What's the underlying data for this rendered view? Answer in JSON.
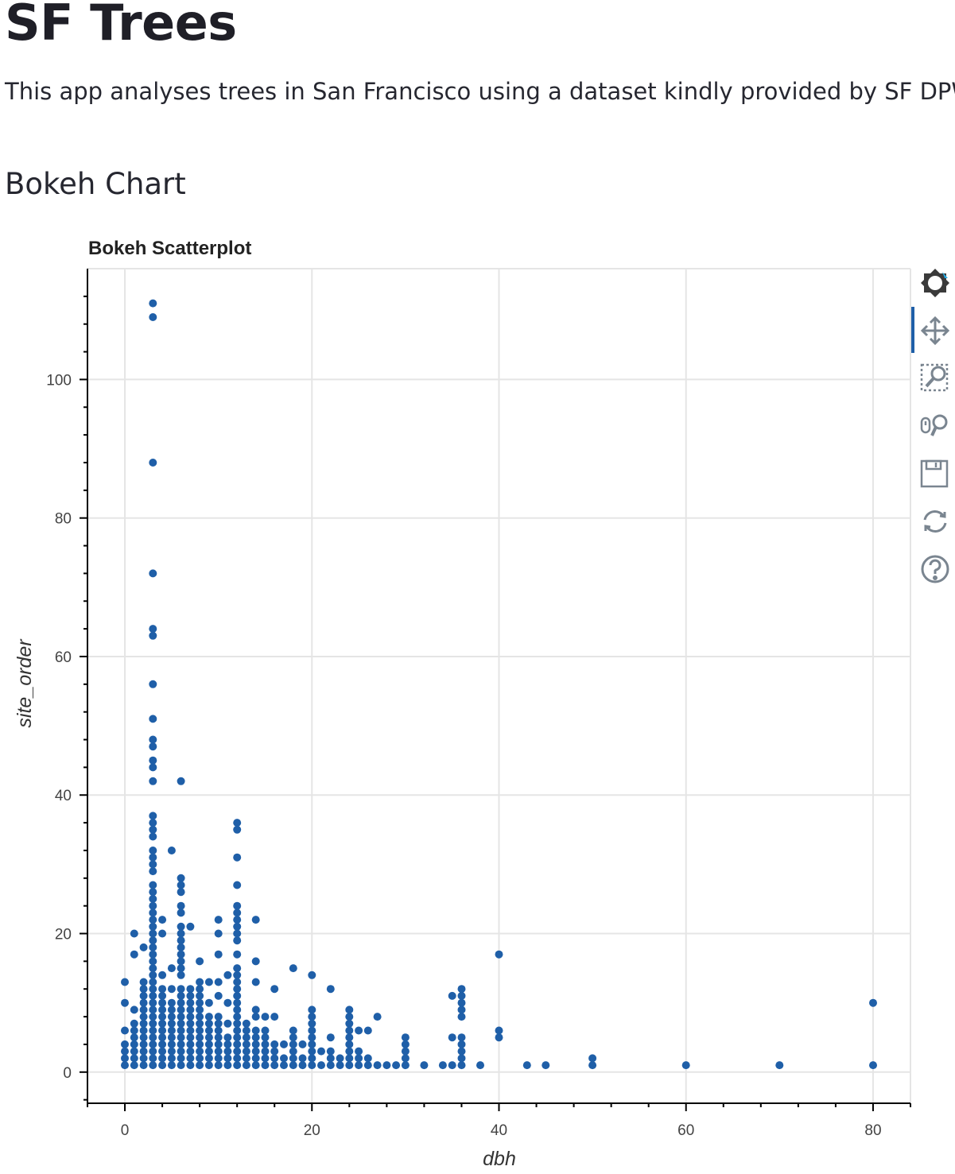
{
  "page": {
    "title": "SF Trees",
    "intro": "This app analyses trees in San Francisco using a dataset kindly provided by SF DPW",
    "section_title": "Bokeh Chart"
  },
  "toolbar": {
    "tools": [
      {
        "icon": "bokeh-logo-icon",
        "active": false
      },
      {
        "icon": "pan-icon",
        "active": true
      },
      {
        "icon": "box-zoom-icon",
        "active": false
      },
      {
        "icon": "wheel-zoom-icon",
        "active": false
      },
      {
        "icon": "save-icon",
        "active": false
      },
      {
        "icon": "reset-icon",
        "active": false
      },
      {
        "icon": "help-icon",
        "active": false
      }
    ]
  },
  "chart_data": {
    "type": "scatter",
    "title": "Bokeh Scatterplot",
    "xlabel": "dbh",
    "ylabel": "site_order",
    "xlim": [
      -4,
      84
    ],
    "ylim": [
      -4.5,
      116
    ],
    "xticks": [
      0,
      20,
      40,
      60,
      80
    ],
    "yticks": [
      0,
      20,
      40,
      60,
      80,
      100
    ],
    "grid": true,
    "marker_color": "#1f5fa8",
    "series": [
      {
        "points": [
          [
            0,
            1
          ],
          [
            0,
            2
          ],
          [
            0,
            3
          ],
          [
            0,
            4
          ],
          [
            0,
            6
          ],
          [
            0,
            10
          ],
          [
            0,
            13
          ],
          [
            1,
            1
          ],
          [
            1,
            2
          ],
          [
            1,
            3
          ],
          [
            1,
            4
          ],
          [
            1,
            5
          ],
          [
            1,
            6
          ],
          [
            1,
            7
          ],
          [
            1,
            9
          ],
          [
            1,
            17
          ],
          [
            1,
            20
          ],
          [
            2,
            1
          ],
          [
            2,
            2
          ],
          [
            2,
            3
          ],
          [
            2,
            4
          ],
          [
            2,
            5
          ],
          [
            2,
            6
          ],
          [
            2,
            7
          ],
          [
            2,
            8
          ],
          [
            2,
            9
          ],
          [
            2,
            10
          ],
          [
            2,
            11
          ],
          [
            2,
            12
          ],
          [
            2,
            13
          ],
          [
            2,
            18
          ],
          [
            3,
            1
          ],
          [
            3,
            2
          ],
          [
            3,
            3
          ],
          [
            3,
            4
          ],
          [
            3,
            5
          ],
          [
            3,
            6
          ],
          [
            3,
            7
          ],
          [
            3,
            8
          ],
          [
            3,
            9
          ],
          [
            3,
            10
          ],
          [
            3,
            11
          ],
          [
            3,
            12
          ],
          [
            3,
            13
          ],
          [
            3,
            14
          ],
          [
            3,
            15
          ],
          [
            3,
            16
          ],
          [
            3,
            17
          ],
          [
            3,
            18
          ],
          [
            3,
            19
          ],
          [
            3,
            20
          ],
          [
            3,
            21
          ],
          [
            3,
            22
          ],
          [
            3,
            23
          ],
          [
            3,
            24
          ],
          [
            3,
            25
          ],
          [
            3,
            26
          ],
          [
            3,
            27
          ],
          [
            3,
            29
          ],
          [
            3,
            30
          ],
          [
            3,
            31
          ],
          [
            3,
            32
          ],
          [
            3,
            34
          ],
          [
            3,
            35
          ],
          [
            3,
            36
          ],
          [
            3,
            37
          ],
          [
            3,
            42
          ],
          [
            3,
            44
          ],
          [
            3,
            45
          ],
          [
            3,
            47
          ],
          [
            3,
            48
          ],
          [
            3,
            51
          ],
          [
            3,
            56
          ],
          [
            3,
            63
          ],
          [
            3,
            64
          ],
          [
            3,
            72
          ],
          [
            3,
            88
          ],
          [
            3,
            109
          ],
          [
            3,
            111
          ],
          [
            4,
            1
          ],
          [
            4,
            2
          ],
          [
            4,
            3
          ],
          [
            4,
            4
          ],
          [
            4,
            5
          ],
          [
            4,
            6
          ],
          [
            4,
            7
          ],
          [
            4,
            8
          ],
          [
            4,
            9
          ],
          [
            4,
            10
          ],
          [
            4,
            11
          ],
          [
            4,
            12
          ],
          [
            4,
            14
          ],
          [
            4,
            20
          ],
          [
            4,
            22
          ],
          [
            5,
            1
          ],
          [
            5,
            2
          ],
          [
            5,
            3
          ],
          [
            5,
            4
          ],
          [
            5,
            5
          ],
          [
            5,
            6
          ],
          [
            5,
            7
          ],
          [
            5,
            8
          ],
          [
            5,
            9
          ],
          [
            5,
            10
          ],
          [
            5,
            12
          ],
          [
            5,
            15
          ],
          [
            5,
            32
          ],
          [
            6,
            1
          ],
          [
            6,
            2
          ],
          [
            6,
            3
          ],
          [
            6,
            4
          ],
          [
            6,
            5
          ],
          [
            6,
            6
          ],
          [
            6,
            7
          ],
          [
            6,
            8
          ],
          [
            6,
            9
          ],
          [
            6,
            10
          ],
          [
            6,
            11
          ],
          [
            6,
            12
          ],
          [
            6,
            14
          ],
          [
            6,
            15
          ],
          [
            6,
            16
          ],
          [
            6,
            17
          ],
          [
            6,
            18
          ],
          [
            6,
            19
          ],
          [
            6,
            20
          ],
          [
            6,
            21
          ],
          [
            6,
            23
          ],
          [
            6,
            24
          ],
          [
            6,
            26
          ],
          [
            6,
            27
          ],
          [
            6,
            28
          ],
          [
            6,
            42
          ],
          [
            7,
            1
          ],
          [
            7,
            2
          ],
          [
            7,
            3
          ],
          [
            7,
            4
          ],
          [
            7,
            5
          ],
          [
            7,
            6
          ],
          [
            7,
            7
          ],
          [
            7,
            8
          ],
          [
            7,
            9
          ],
          [
            7,
            10
          ],
          [
            7,
            11
          ],
          [
            7,
            12
          ],
          [
            7,
            21
          ],
          [
            8,
            1
          ],
          [
            8,
            2
          ],
          [
            8,
            3
          ],
          [
            8,
            4
          ],
          [
            8,
            5
          ],
          [
            8,
            6
          ],
          [
            8,
            7
          ],
          [
            8,
            8
          ],
          [
            8,
            9
          ],
          [
            8,
            10
          ],
          [
            8,
            11
          ],
          [
            8,
            12
          ],
          [
            8,
            13
          ],
          [
            8,
            16
          ],
          [
            9,
            1
          ],
          [
            9,
            2
          ],
          [
            9,
            3
          ],
          [
            9,
            4
          ],
          [
            9,
            5
          ],
          [
            9,
            6
          ],
          [
            9,
            7
          ],
          [
            9,
            8
          ],
          [
            9,
            10
          ],
          [
            9,
            13
          ],
          [
            10,
            1
          ],
          [
            10,
            2
          ],
          [
            10,
            3
          ],
          [
            10,
            4
          ],
          [
            10,
            5
          ],
          [
            10,
            6
          ],
          [
            10,
            7
          ],
          [
            10,
            8
          ],
          [
            10,
            11
          ],
          [
            10,
            13
          ],
          [
            10,
            17
          ],
          [
            10,
            20
          ],
          [
            10,
            22
          ],
          [
            11,
            1
          ],
          [
            11,
            2
          ],
          [
            11,
            3
          ],
          [
            11,
            4
          ],
          [
            11,
            5
          ],
          [
            11,
            7
          ],
          [
            11,
            10
          ],
          [
            11,
            14
          ],
          [
            12,
            1
          ],
          [
            12,
            2
          ],
          [
            12,
            3
          ],
          [
            12,
            4
          ],
          [
            12,
            5
          ],
          [
            12,
            6
          ],
          [
            12,
            7
          ],
          [
            12,
            8
          ],
          [
            12,
            9
          ],
          [
            12,
            10
          ],
          [
            12,
            11
          ],
          [
            12,
            12
          ],
          [
            12,
            13
          ],
          [
            12,
            14
          ],
          [
            12,
            15
          ],
          [
            12,
            17
          ],
          [
            12,
            19
          ],
          [
            12,
            20
          ],
          [
            12,
            21
          ],
          [
            12,
            22
          ],
          [
            12,
            23
          ],
          [
            12,
            24
          ],
          [
            12,
            27
          ],
          [
            12,
            31
          ],
          [
            12,
            35
          ],
          [
            12,
            36
          ],
          [
            13,
            1
          ],
          [
            13,
            2
          ],
          [
            13,
            3
          ],
          [
            13,
            4
          ],
          [
            13,
            5
          ],
          [
            13,
            6
          ],
          [
            13,
            7
          ],
          [
            14,
            1
          ],
          [
            14,
            2
          ],
          [
            14,
            3
          ],
          [
            14,
            4
          ],
          [
            14,
            5
          ],
          [
            14,
            6
          ],
          [
            14,
            8
          ],
          [
            14,
            9
          ],
          [
            14,
            13
          ],
          [
            14,
            16
          ],
          [
            14,
            22
          ],
          [
            15,
            1
          ],
          [
            15,
            2
          ],
          [
            15,
            3
          ],
          [
            15,
            4
          ],
          [
            15,
            5
          ],
          [
            15,
            6
          ],
          [
            15,
            8
          ],
          [
            16,
            1
          ],
          [
            16,
            2
          ],
          [
            16,
            3
          ],
          [
            16,
            4
          ],
          [
            16,
            8
          ],
          [
            16,
            12
          ],
          [
            17,
            1
          ],
          [
            17,
            2
          ],
          [
            17,
            4
          ],
          [
            18,
            1
          ],
          [
            18,
            2
          ],
          [
            18,
            3
          ],
          [
            18,
            4
          ],
          [
            18,
            5
          ],
          [
            18,
            6
          ],
          [
            18,
            15
          ],
          [
            19,
            1
          ],
          [
            19,
            2
          ],
          [
            19,
            4
          ],
          [
            20,
            1
          ],
          [
            20,
            2
          ],
          [
            20,
            3
          ],
          [
            20,
            4
          ],
          [
            20,
            5
          ],
          [
            20,
            6
          ],
          [
            20,
            7
          ],
          [
            20,
            8
          ],
          [
            20,
            9
          ],
          [
            20,
            14
          ],
          [
            21,
            1
          ],
          [
            21,
            3
          ],
          [
            22,
            1
          ],
          [
            22,
            2
          ],
          [
            22,
            3
          ],
          [
            22,
            5
          ],
          [
            22,
            12
          ],
          [
            23,
            1
          ],
          [
            23,
            2
          ],
          [
            24,
            1
          ],
          [
            24,
            2
          ],
          [
            24,
            3
          ],
          [
            24,
            4
          ],
          [
            24,
            5
          ],
          [
            24,
            6
          ],
          [
            24,
            7
          ],
          [
            24,
            8
          ],
          [
            24,
            9
          ],
          [
            25,
            1
          ],
          [
            25,
            2
          ],
          [
            25,
            3
          ],
          [
            25,
            6
          ],
          [
            26,
            1
          ],
          [
            26,
            2
          ],
          [
            26,
            6
          ],
          [
            27,
            1
          ],
          [
            27,
            8
          ],
          [
            28,
            1
          ],
          [
            29,
            1
          ],
          [
            30,
            1
          ],
          [
            30,
            2
          ],
          [
            30,
            3
          ],
          [
            30,
            4
          ],
          [
            30,
            5
          ],
          [
            32,
            1
          ],
          [
            34,
            1
          ],
          [
            35,
            1
          ],
          [
            35,
            5
          ],
          [
            35,
            11
          ],
          [
            36,
            1
          ],
          [
            36,
            2
          ],
          [
            36,
            3
          ],
          [
            36,
            4
          ],
          [
            36,
            5
          ],
          [
            36,
            8
          ],
          [
            36,
            9
          ],
          [
            36,
            10
          ],
          [
            36,
            11
          ],
          [
            36,
            12
          ],
          [
            38,
            1
          ],
          [
            40,
            5
          ],
          [
            40,
            6
          ],
          [
            40,
            17
          ],
          [
            43,
            1
          ],
          [
            45,
            1
          ],
          [
            50,
            1
          ],
          [
            50,
            2
          ],
          [
            60,
            1
          ],
          [
            70,
            1
          ],
          [
            80,
            1
          ],
          [
            80,
            10
          ]
        ]
      }
    ]
  }
}
